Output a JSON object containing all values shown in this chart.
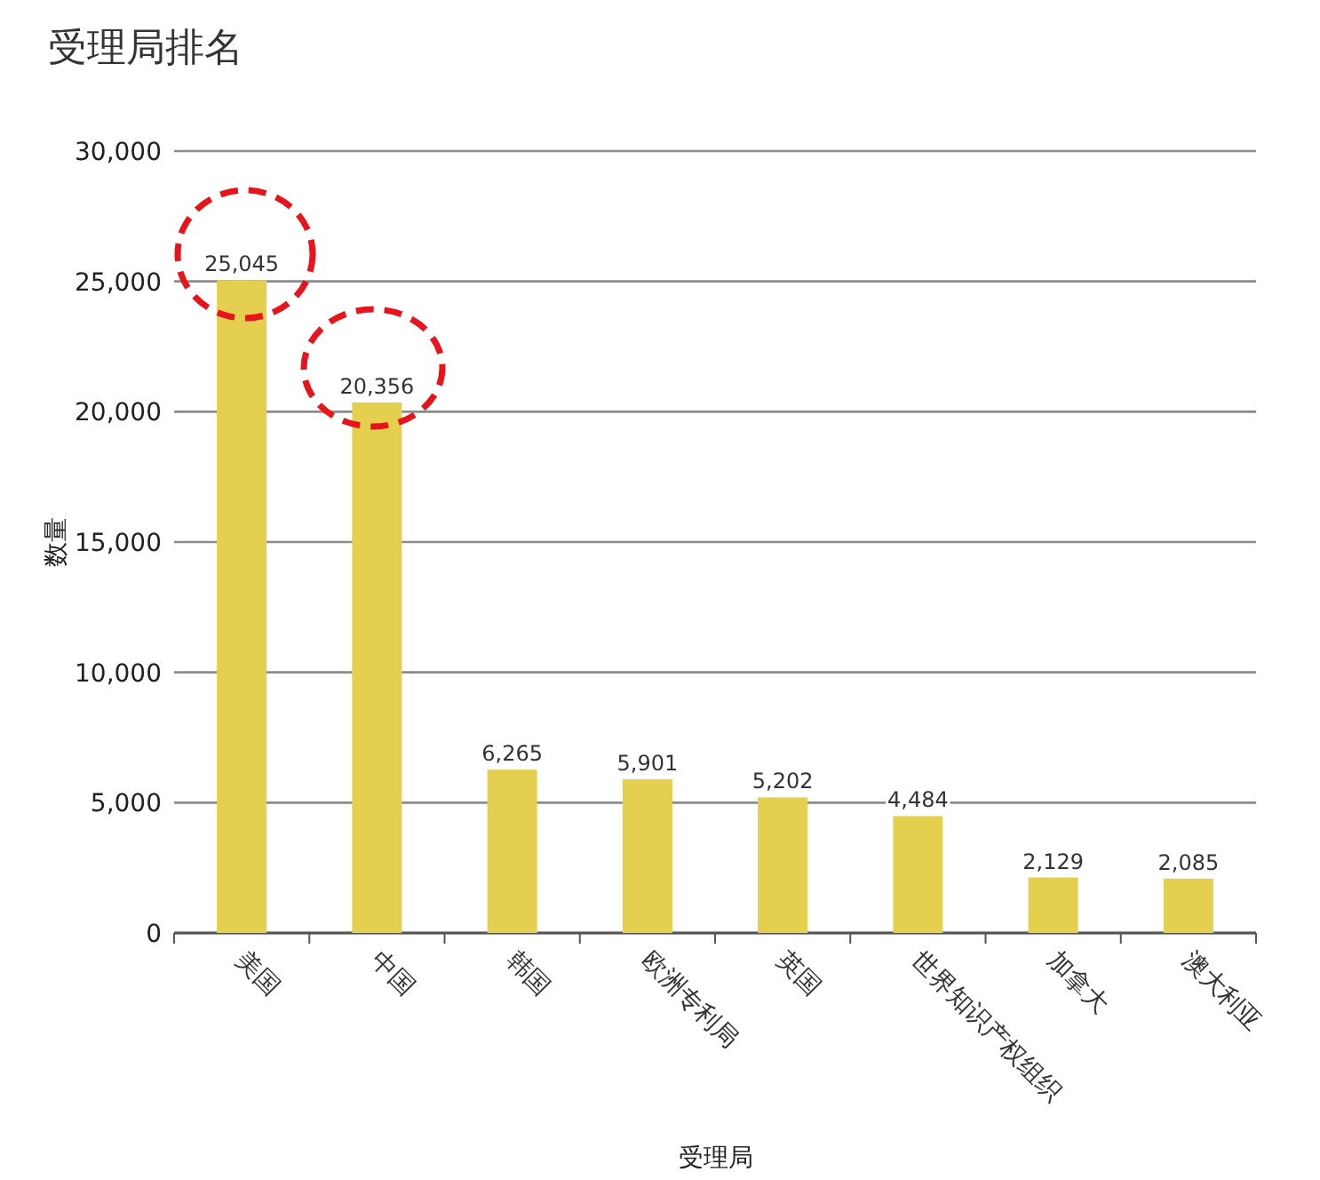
{
  "chart_data": {
    "type": "bar",
    "title": "受理局排名",
    "xlabel": "受理局",
    "ylabel": "数量",
    "categories": [
      "美国",
      "中国",
      "韩国",
      "欧洲专利局",
      "英国",
      "世界知识产权组织",
      "加拿大",
      "澳大利亚"
    ],
    "values": [
      25045,
      20356,
      6265,
      5901,
      5202,
      4484,
      2129,
      2085
    ],
    "value_labels": [
      "25,045",
      "20,356",
      "6,265",
      "5,901",
      "5,202",
      "4,484",
      "2,129",
      "2,085"
    ],
    "color": "#e4cf4e",
    "ylim": [
      0,
      30000
    ],
    "yticks": [
      {
        "value": 0,
        "label": "0"
      },
      {
        "value": 5000,
        "label": "5,000"
      },
      {
        "value": 10000,
        "label": "10,000"
      },
      {
        "value": 15000,
        "label": "15,000"
      },
      {
        "value": 20000,
        "label": "20,000"
      },
      {
        "value": 25000,
        "label": "25,000"
      },
      {
        "value": 30000,
        "label": "30,000"
      }
    ],
    "grid": "y"
  }
}
